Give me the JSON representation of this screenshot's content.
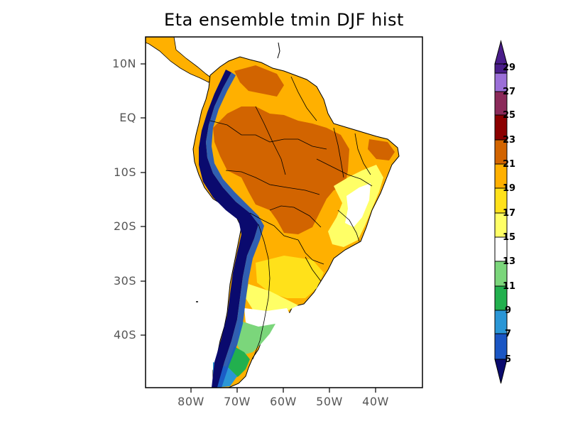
{
  "title": "Eta ensemble tmin DJF hist",
  "map": {
    "lat_labels": [
      "10N",
      "EQ",
      "10S",
      "20S",
      "30S",
      "40S"
    ],
    "lon_labels": [
      "80W",
      "70W",
      "60W",
      "50W",
      "40W"
    ],
    "extent": {
      "lon_min": -90,
      "lon_max": -30,
      "lat_min": -49.5,
      "lat_max": 14.5
    }
  },
  "colorbar": {
    "labels": [
      "29",
      "27",
      "25",
      "23",
      "21",
      "19",
      "17",
      "15",
      "13",
      "11",
      "9",
      "7",
      "5"
    ],
    "under_color": "#0a0a6e",
    "over_color": "#4a1d8a",
    "colors": [
      "#1a56c4",
      "#2a96d6",
      "#22b04e",
      "#7bd67b",
      "#ffffff",
      "#ffff66",
      "#ffe11a",
      "#ffb000",
      "#d26400",
      "#8b0000",
      "#8b2a5a",
      "#9b6fd8"
    ]
  }
}
